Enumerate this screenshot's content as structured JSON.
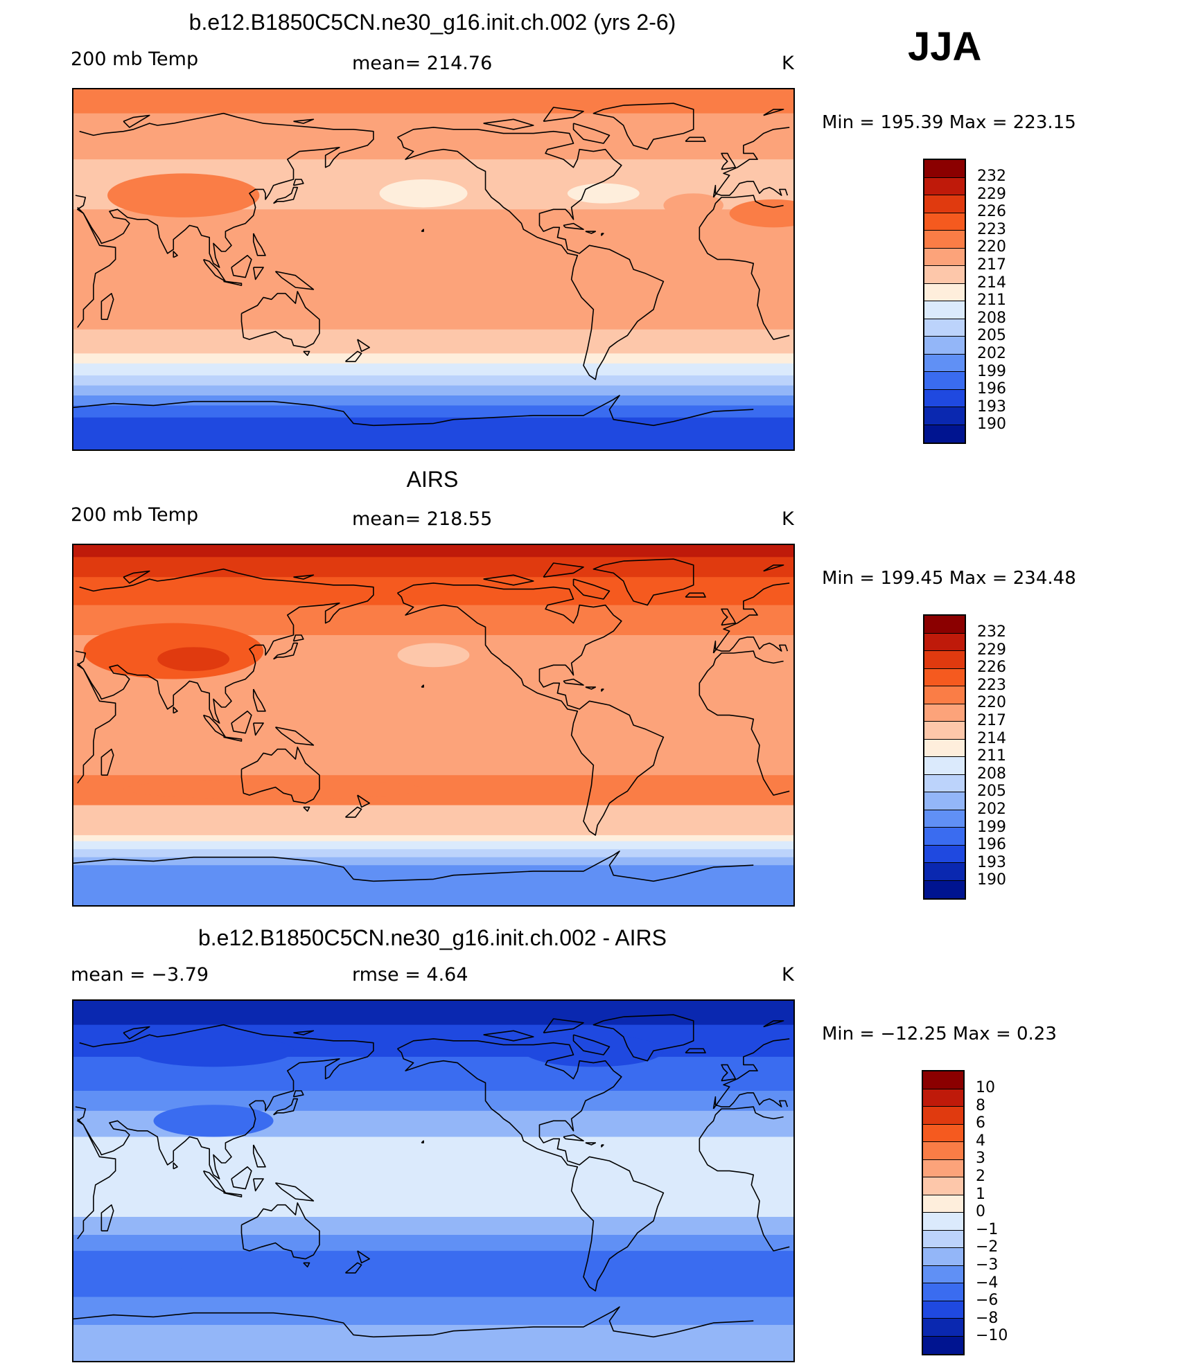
{
  "season": "JJA",
  "panels": [
    {
      "title": "b.e12.B1850C5CN.ne30_g16.init.ch.002 (yrs 2-6)",
      "left_label": "200 mb Temp",
      "mid_label": "mean=  214.76",
      "units": "K",
      "minmax": "Min  =  195.39  Max  =  223.15",
      "colorbar": [
        "232",
        "229",
        "226",
        "223",
        "220",
        "217",
        "214",
        "211",
        "208",
        "205",
        "202",
        "199",
        "196",
        "193",
        "190"
      ],
      "bands": [
        {
          "lat_max": 90,
          "lat_min": 78,
          "value": 222
        },
        {
          "lat_max": 78,
          "lat_min": 55,
          "value": 218
        },
        {
          "lat_max": 55,
          "lat_min": 30,
          "value": 216
        },
        {
          "lat_max": 30,
          "lat_min": -30,
          "value": 218.5
        },
        {
          "lat_max": -30,
          "lat_min": -42,
          "value": 216
        },
        {
          "lat_max": -42,
          "lat_min": -47,
          "value": 213
        },
        {
          "lat_max": -47,
          "lat_min": -53,
          "value": 209
        },
        {
          "lat_max": -53,
          "lat_min": -58,
          "value": 206
        },
        {
          "lat_max": -58,
          "lat_min": -63,
          "value": 203
        },
        {
          "lat_max": -63,
          "lat_min": -68,
          "value": 200
        },
        {
          "lat_max": -68,
          "lat_min": -74,
          "value": 197
        },
        {
          "lat_max": -74,
          "lat_min": -90,
          "value": 195.5
        }
      ],
      "blobs": [
        {
          "lon": 85,
          "lat": 37,
          "rlon": 38,
          "rlat": 11,
          "value": 221
        },
        {
          "lon": 20,
          "lat": 28,
          "rlon": 22,
          "rlat": 7,
          "value": 220
        },
        {
          "lon": -155,
          "lat": 38,
          "rlon": 22,
          "rlat": 7,
          "value": 213
        },
        {
          "lon": -65,
          "lat": 38,
          "rlon": 18,
          "rlat": 5,
          "value": 213
        },
        {
          "lon": -20,
          "lat": 32,
          "rlon": 15,
          "rlat": 6,
          "value": 218
        }
      ]
    },
    {
      "title": "AIRS",
      "left_label": "200 mb Temp",
      "mid_label": "mean=  218.55",
      "units": "K",
      "minmax": "Min  =  199.45  Max  =  234.48",
      "colorbar": [
        "232",
        "229",
        "226",
        "223",
        "220",
        "217",
        "214",
        "211",
        "208",
        "205",
        "202",
        "199",
        "196",
        "193",
        "190"
      ],
      "bands": [
        {
          "lat_max": 90,
          "lat_min": 84,
          "value": 230
        },
        {
          "lat_max": 84,
          "lat_min": 74,
          "value": 227
        },
        {
          "lat_max": 74,
          "lat_min": 60,
          "value": 224
        },
        {
          "lat_max": 60,
          "lat_min": 45,
          "value": 221
        },
        {
          "lat_max": 45,
          "lat_min": -25,
          "value": 219
        },
        {
          "lat_max": -25,
          "lat_min": -40,
          "value": 220
        },
        {
          "lat_max": -40,
          "lat_min": -55,
          "value": 216
        },
        {
          "lat_max": -55,
          "lat_min": -58,
          "value": 213
        },
        {
          "lat_max": -58,
          "lat_min": -62,
          "value": 210
        },
        {
          "lat_max": -62,
          "lat_min": -66,
          "value": 207
        },
        {
          "lat_max": -66,
          "lat_min": -70,
          "value": 204
        },
        {
          "lat_max": -70,
          "lat_min": -90,
          "value": 201
        }
      ],
      "blobs": [
        {
          "lon": 80,
          "lat": 37,
          "rlon": 45,
          "rlat": 14,
          "value": 224
        },
        {
          "lon": 90,
          "lat": 33,
          "rlon": 18,
          "rlat": 6,
          "value": 226
        },
        {
          "lon": -150,
          "lat": 35,
          "rlon": 18,
          "rlat": 6,
          "value": 216
        },
        {
          "lon": 130,
          "lat": -32,
          "rlon": 75,
          "rlat": 5,
          "value": 222
        }
      ]
    },
    {
      "title": "b.e12.B1850C5CN.ne30_g16.init.ch.002 - AIRS",
      "left_label": "mean  =    −3.79",
      "mid_label": "rmse  =     4.64",
      "units": "K",
      "minmax": "Min  =  −12.25  Max  =     0.23",
      "colorbar": [
        "10",
        "8",
        "6",
        "4",
        "3",
        "2",
        "1",
        "0",
        "−1",
        "−2",
        "−3",
        "−4",
        "−6",
        "−8",
        "−10"
      ],
      "bands": [
        {
          "lat_max": 90,
          "lat_min": 78,
          "value": -9
        },
        {
          "lat_max": 78,
          "lat_min": 62,
          "value": -7
        },
        {
          "lat_max": 62,
          "lat_min": 45,
          "value": -5
        },
        {
          "lat_max": 45,
          "lat_min": 35,
          "value": -3.5
        },
        {
          "lat_max": 35,
          "lat_min": 22,
          "value": -2.5
        },
        {
          "lat_max": 22,
          "lat_min": -18,
          "value": -0.5
        },
        {
          "lat_max": -18,
          "lat_min": -27,
          "value": -2.5
        },
        {
          "lat_max": -27,
          "lat_min": -35,
          "value": -3.5
        },
        {
          "lat_max": -35,
          "lat_min": -58,
          "value": -5
        },
        {
          "lat_max": -58,
          "lat_min": -72,
          "value": -3.5
        },
        {
          "lat_max": -72,
          "lat_min": -90,
          "value": -2.5
        }
      ],
      "blobs": [
        {
          "lon": 100,
          "lat": 65,
          "rlon": 40,
          "rlat": 8,
          "value": -8
        },
        {
          "lon": -70,
          "lat": 65,
          "rlon": 35,
          "rlat": 8,
          "value": -8
        },
        {
          "lon": 100,
          "lat": 30,
          "rlon": 30,
          "rlat": 8,
          "value": -4.5
        },
        {
          "lon": -170,
          "lat": -45,
          "rlon": 30,
          "rlat": 4,
          "value": -6
        },
        {
          "lon": 60,
          "lat": -45,
          "rlon": 25,
          "rlat": 4,
          "value": -6
        },
        {
          "lon": -30,
          "lat": -45,
          "rlon": 20,
          "rlat": 4,
          "value": -6
        }
      ]
    }
  ],
  "colors": [
    "#8b0000",
    "#bf1a0a",
    "#e03a0f",
    "#f55a1f",
    "#fa7d46",
    "#fca37a",
    "#fdc7aa",
    "#feeedc",
    "#dbeafc",
    "#bcd3fb",
    "#93b6f8",
    "#6090f5",
    "#3a6cf0",
    "#1f49e0",
    "#0a28b0",
    "#001490"
  ]
}
